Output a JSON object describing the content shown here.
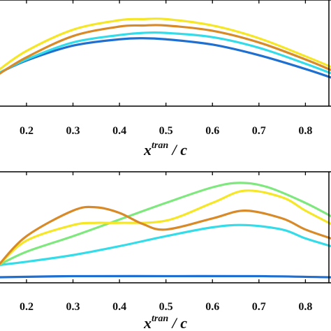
{
  "chart_data": [
    {
      "type": "line",
      "title": "",
      "xlabel": {
        "base": "x",
        "sup": "tran",
        "rest": " / c"
      },
      "xlim": [
        0.14,
        0.855
      ],
      "ylim": [
        0,
        1
      ],
      "xticks": [
        "0.2",
        "0.3",
        "0.4",
        "0.5",
        "0.6",
        "0.7",
        "0.8"
      ],
      "xtick_values": [
        0.2,
        0.3,
        0.4,
        0.5,
        0.6,
        0.7,
        0.8
      ],
      "grid": false,
      "series": [
        {
          "color": "#1f6fd0",
          "x": [
            0.14,
            0.2,
            0.3,
            0.4,
            0.45,
            0.5,
            0.6,
            0.7,
            0.8,
            0.855
          ],
          "y": [
            0.31,
            0.43,
            0.57,
            0.63,
            0.64,
            0.63,
            0.58,
            0.48,
            0.35,
            0.27
          ]
        },
        {
          "color": "#33dce8",
          "x": [
            0.14,
            0.2,
            0.3,
            0.4,
            0.45,
            0.5,
            0.6,
            0.7,
            0.8,
            0.855
          ],
          "y": [
            0.31,
            0.44,
            0.6,
            0.67,
            0.69,
            0.69,
            0.65,
            0.55,
            0.4,
            0.31
          ]
        },
        {
          "color": "#f5e627",
          "x": [
            0.14,
            0.2,
            0.3,
            0.4,
            0.45,
            0.5,
            0.6,
            0.7,
            0.8,
            0.855
          ],
          "y": [
            0.34,
            0.52,
            0.72,
            0.81,
            0.82,
            0.82,
            0.76,
            0.64,
            0.47,
            0.37
          ]
        },
        {
          "color": "#d98a28",
          "x": [
            0.14,
            0.2,
            0.3,
            0.4,
            0.45,
            0.5,
            0.6,
            0.7,
            0.8,
            0.855
          ],
          "y": [
            0.3,
            0.46,
            0.66,
            0.75,
            0.76,
            0.76,
            0.71,
            0.6,
            0.44,
            0.34
          ]
        }
      ]
    },
    {
      "type": "line",
      "title": "",
      "xlabel": {
        "base": "x",
        "sup": "tran",
        "rest": " / c"
      },
      "xlim": [
        0.14,
        0.855
      ],
      "ylim": [
        0,
        1
      ],
      "xticks": [
        "0.2",
        "0.3",
        "0.4",
        "0.5",
        "0.6",
        "0.7",
        "0.8"
      ],
      "xtick_values": [
        0.2,
        0.3,
        0.4,
        0.5,
        0.6,
        0.7,
        0.8
      ],
      "grid": false,
      "series": [
        {
          "color": "#1f6fd0",
          "x": [
            0.14,
            0.3,
            0.5,
            0.7,
            0.855
          ],
          "y": [
            0.05,
            0.06,
            0.06,
            0.06,
            0.05
          ]
        },
        {
          "color": "#33dce8",
          "x": [
            0.14,
            0.2,
            0.3,
            0.4,
            0.5,
            0.6,
            0.67,
            0.75,
            0.8,
            0.855
          ],
          "y": [
            0.16,
            0.19,
            0.25,
            0.33,
            0.42,
            0.5,
            0.52,
            0.48,
            0.4,
            0.33
          ]
        },
        {
          "color": "#7ee87e",
          "x": [
            0.14,
            0.2,
            0.3,
            0.4,
            0.5,
            0.6,
            0.66,
            0.72,
            0.8,
            0.855
          ],
          "y": [
            0.16,
            0.28,
            0.42,
            0.57,
            0.72,
            0.86,
            0.9,
            0.86,
            0.72,
            0.6
          ]
        },
        {
          "color": "#f5e627",
          "x": [
            0.14,
            0.2,
            0.3,
            0.35,
            0.4,
            0.5,
            0.6,
            0.67,
            0.75,
            0.8,
            0.855
          ],
          "y": [
            0.16,
            0.38,
            0.52,
            0.54,
            0.54,
            0.56,
            0.72,
            0.83,
            0.77,
            0.65,
            0.53
          ]
        },
        {
          "color": "#d98a28",
          "x": [
            0.14,
            0.2,
            0.3,
            0.35,
            0.4,
            0.45,
            0.5,
            0.6,
            0.67,
            0.75,
            0.8,
            0.855
          ],
          "y": [
            0.16,
            0.42,
            0.65,
            0.68,
            0.63,
            0.53,
            0.48,
            0.58,
            0.65,
            0.58,
            0.48,
            0.4
          ]
        }
      ]
    }
  ]
}
